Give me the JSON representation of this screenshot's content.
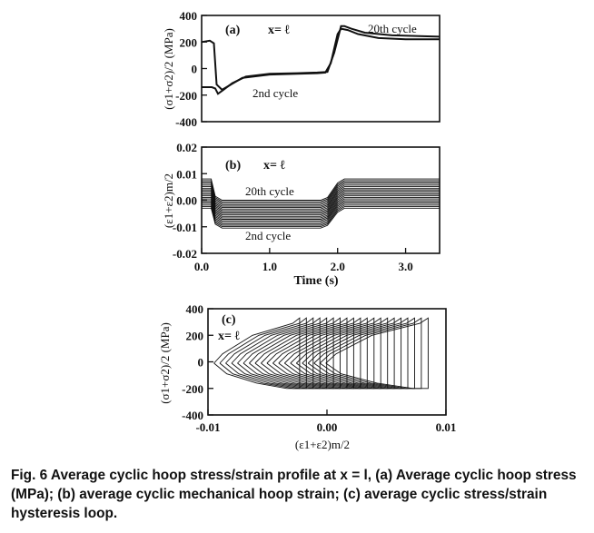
{
  "caption": "Fig. 6   Average cyclic hoop stress/strain profile at x = l, (a) Average cyclic hoop stress (MPa); (b) average cyclic mechanical hoop strain; (c) average cyclic stress/strain hysteresis loop.",
  "chart_data": [
    {
      "type": "line",
      "panel": "(a)",
      "annotations": [
        "(a)",
        "x= ℓ",
        "20th cycle",
        "2nd cycle"
      ],
      "ylabel": "(σ1+σ2)/2 (MPa)",
      "xlim": [
        0,
        3.5
      ],
      "ylim": [
        -400,
        400
      ],
      "yticks": [
        -400,
        -200,
        0,
        200,
        400
      ],
      "series": [
        {
          "x": [
            0.0,
            0.12,
            0.18,
            0.22,
            0.3,
            0.4,
            0.6,
            1.0,
            1.4,
            1.7,
            1.82,
            1.9,
            2.0,
            2.05,
            2.15,
            2.3,
            2.6,
            3.0,
            3.5
          ],
          "y": [
            200,
            210,
            190,
            -120,
            -160,
            -130,
            -70,
            -45,
            -40,
            -35,
            -30,
            40,
            260,
            300,
            290,
            260,
            230,
            220,
            220
          ]
        },
        {
          "x": [
            0.0,
            0.15,
            0.2,
            0.24,
            0.32,
            0.45,
            0.65,
            1.0,
            1.4,
            1.7,
            1.85,
            1.95,
            2.05,
            2.1,
            2.2,
            2.4,
            2.8,
            3.2,
            3.5
          ],
          "y": [
            -140,
            -140,
            -150,
            -190,
            -160,
            -110,
            -60,
            -40,
            -35,
            -30,
            -25,
            120,
            320,
            320,
            300,
            270,
            250,
            245,
            240
          ]
        }
      ]
    },
    {
      "type": "line",
      "panel": "(b)",
      "annotations": [
        "(b)",
        "x= ℓ",
        "20th cycle",
        "2nd cycle"
      ],
      "ylabel": "(ε1+ε2)m/2",
      "xlabel": "Time (s)",
      "xlim": [
        0,
        3.5
      ],
      "ylim": [
        -0.02,
        0.02
      ],
      "yticks": [
        "-0.02",
        "-0.01",
        "0.00",
        "0.01",
        "0.02"
      ],
      "xticks": [
        "0.0",
        "1.0",
        "2.0",
        "3.0"
      ],
      "cycles": {
        "count": 20,
        "high_first": -0.003,
        "high_last": 0.008,
        "low_first": -0.0105,
        "low_last": 0.0
      }
    },
    {
      "type": "line",
      "panel": "(c)",
      "annotations": [
        "(c)",
        "x= ℓ"
      ],
      "ylabel": "(σ1+σ2)/2 (MPa)",
      "xlabel": "(ε1+ε2)m/2",
      "xlim": [
        -0.01,
        0.01
      ],
      "ylim": [
        -400,
        400
      ],
      "yticks": [
        -400,
        -200,
        0,
        200,
        400
      ],
      "xticks": [
        "-0.01",
        "0.00",
        "0.01"
      ],
      "loops": {
        "count": 20,
        "x_left_first": -0.0095,
        "x_left_last": -0.0001,
        "x_right_first": -0.0023,
        "x_right_last": 0.0085,
        "y_top": 330,
        "y_bottom": -200,
        "y_start": -10
      }
    }
  ]
}
